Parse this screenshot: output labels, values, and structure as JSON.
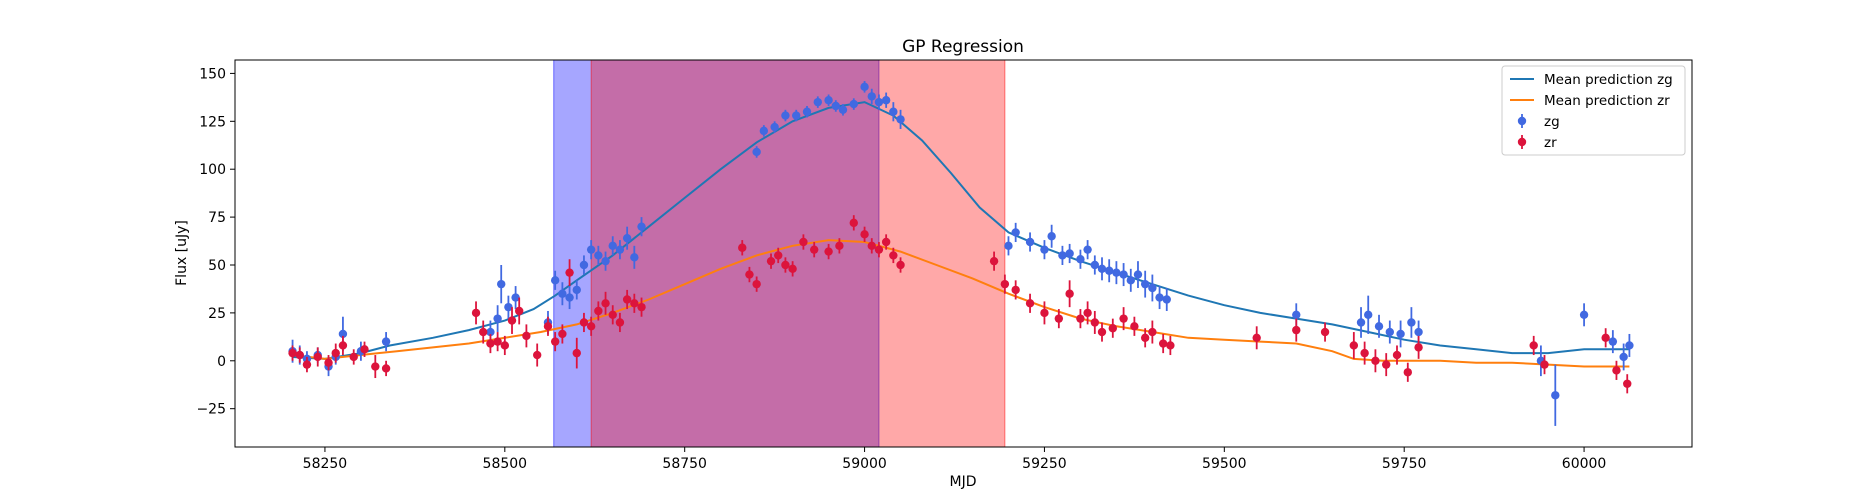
{
  "chart_data": {
    "type": "scatter",
    "title": "GP Regression",
    "xlabel": "MJD",
    "ylabel": "Flux [uJy]",
    "xlim": [
      58125,
      60150
    ],
    "ylim": [
      -45,
      157
    ],
    "xticks": [
      58250,
      58500,
      58750,
      59000,
      59250,
      59500,
      59750,
      60000
    ],
    "yticks": [
      -25,
      0,
      25,
      50,
      75,
      100,
      125,
      150
    ],
    "grid": false,
    "legend_position": "top-right",
    "shaded_regions": [
      {
        "x_start": 58568,
        "x_end": 59020,
        "color": "#0000ff",
        "opacity": 0.35
      },
      {
        "x_start": 58620,
        "x_end": 59195,
        "color": "#ff0000",
        "opacity": 0.34
      }
    ],
    "series": [
      {
        "name": "Mean prediction zg",
        "kind": "line",
        "color": "#1f77b4",
        "x": [
          58205,
          58250,
          58300,
          58340,
          58400,
          58450,
          58500,
          58540,
          58570,
          58600,
          58650,
          58700,
          58750,
          58800,
          58850,
          58900,
          58950,
          59000,
          59040,
          59080,
          59120,
          59160,
          59200,
          59250,
          59300,
          59350,
          59400,
          59450,
          59500,
          59550,
          59600,
          59650,
          59700,
          59750,
          59800,
          59850,
          59900,
          59950,
          60000,
          60063
        ],
        "y": [
          2,
          1,
          4,
          8,
          12,
          16,
          21,
          27,
          34,
          42,
          55,
          70,
          85,
          100,
          114,
          125,
          132,
          135,
          128,
          115,
          98,
          80,
          67,
          59,
          52,
          46,
          40,
          34,
          29,
          25,
          22,
          19,
          15,
          11,
          8,
          6,
          4,
          4,
          6,
          6
        ]
      },
      {
        "name": "Mean prediction zr",
        "kind": "line",
        "color": "#ff7f0e",
        "x": [
          58205,
          58250,
          58300,
          58350,
          58400,
          58450,
          58500,
          58550,
          58600,
          58650,
          58700,
          58750,
          58800,
          58850,
          58900,
          58950,
          59000,
          59050,
          59100,
          59150,
          59200,
          59250,
          59300,
          59350,
          59400,
          59450,
          59500,
          59550,
          59600,
          59650,
          59680,
          59720,
          59750,
          59800,
          59850,
          59900,
          59950,
          60000,
          60063
        ],
        "y": [
          3,
          1,
          3,
          5,
          7,
          9,
          12,
          15,
          19,
          25,
          32,
          40,
          48,
          55,
          60,
          63,
          62,
          57,
          50,
          43,
          35,
          28,
          22,
          18,
          15,
          12,
          11,
          10,
          9,
          5,
          1,
          0,
          0,
          0,
          -1,
          -1,
          -2,
          -3,
          -3
        ]
      },
      {
        "name": "zg",
        "kind": "errorbar",
        "color": "#4169e1",
        "x": [
          58205,
          58215,
          58225,
          58240,
          58255,
          58265,
          58275,
          58300,
          58335,
          58480,
          58490,
          58495,
          58505,
          58515,
          58560,
          58570,
          58580,
          58590,
          58600,
          58610,
          58620,
          58630,
          58640,
          58650,
          58660,
          58670,
          58680,
          58690,
          58850,
          58860,
          58875,
          58890,
          58905,
          58920,
          58935,
          58950,
          58960,
          58970,
          58985,
          59000,
          59010,
          59020,
          59030,
          59040,
          59050,
          59200,
          59210,
          59230,
          59250,
          59260,
          59275,
          59285,
          59300,
          59310,
          59320,
          59330,
          59340,
          59350,
          59360,
          59370,
          59380,
          59390,
          59400,
          59410,
          59420,
          59600,
          59690,
          59700,
          59715,
          59730,
          59745,
          59760,
          59770,
          59940,
          59960,
          60000,
          60040,
          60055,
          60063
        ],
        "y": [
          5,
          3,
          1,
          3,
          -3,
          2,
          14,
          5,
          10,
          15,
          22,
          40,
          28,
          33,
          20,
          42,
          35,
          33,
          37,
          50,
          58,
          55,
          52,
          60,
          58,
          64,
          54,
          70,
          109,
          120,
          122,
          128,
          128,
          130,
          135,
          136,
          133,
          131,
          134,
          143,
          138,
          135,
          136,
          130,
          126,
          60,
          67,
          62,
          58,
          65,
          55,
          56,
          53,
          58,
          50,
          48,
          47,
          46,
          45,
          42,
          45,
          40,
          38,
          33,
          32,
          24,
          20,
          24,
          18,
          15,
          14,
          20,
          15,
          0,
          -18,
          24,
          10,
          2,
          8
        ],
        "err": [
          6,
          5,
          4,
          4,
          5,
          4,
          9,
          5,
          5,
          6,
          7,
          10,
          6,
          6,
          6,
          5,
          6,
          6,
          5,
          5,
          5,
          5,
          5,
          5,
          5,
          6,
          6,
          5,
          3,
          3,
          3,
          3,
          3,
          3,
          3,
          3,
          3,
          3,
          3,
          3,
          4,
          4,
          4,
          5,
          5,
          5,
          5,
          5,
          5,
          6,
          5,
          5,
          5,
          5,
          5,
          6,
          6,
          6,
          6,
          6,
          7,
          7,
          7,
          6,
          6,
          6,
          8,
          10,
          6,
          6,
          7,
          8,
          6,
          8,
          16,
          6,
          6,
          7,
          6
        ]
      },
      {
        "name": "zr",
        "kind": "errorbar",
        "color": "#dc143c",
        "x": [
          58205,
          58215,
          58225,
          58240,
          58255,
          58265,
          58275,
          58290,
          58305,
          58320,
          58335,
          58460,
          58470,
          58480,
          58490,
          58500,
          58510,
          58520,
          58530,
          58545,
          58560,
          58570,
          58580,
          58590,
          58600,
          58610,
          58620,
          58630,
          58640,
          58650,
          58660,
          58670,
          58680,
          58690,
          58830,
          58840,
          58850,
          58870,
          58880,
          58890,
          58900,
          58915,
          58930,
          58950,
          58965,
          58985,
          59000,
          59010,
          59020,
          59030,
          59040,
          59050,
          59180,
          59195,
          59210,
          59230,
          59250,
          59270,
          59285,
          59300,
          59310,
          59320,
          59330,
          59345,
          59360,
          59375,
          59390,
          59400,
          59415,
          59425,
          59545,
          59600,
          59640,
          59680,
          59695,
          59710,
          59725,
          59740,
          59755,
          59770,
          59930,
          59945,
          60030,
          60045,
          60060
        ],
        "y": [
          4,
          3,
          -2,
          2,
          -1,
          4,
          8,
          2,
          6,
          -3,
          -4,
          25,
          15,
          9,
          10,
          8,
          21,
          26,
          13,
          3,
          18,
          10,
          14,
          46,
          4,
          20,
          18,
          26,
          30,
          24,
          20,
          32,
          30,
          28,
          59,
          45,
          40,
          52,
          55,
          50,
          48,
          62,
          58,
          57,
          60,
          72,
          66,
          60,
          58,
          62,
          55,
          50,
          52,
          40,
          37,
          30,
          25,
          22,
          35,
          22,
          25,
          20,
          15,
          17,
          22,
          18,
          12,
          15,
          9,
          8,
          12,
          16,
          15,
          8,
          4,
          0,
          -2,
          3,
          -6,
          7,
          8,
          -2,
          12,
          -5,
          -12
        ],
        "err": [
          4,
          4,
          4,
          5,
          4,
          5,
          5,
          4,
          4,
          6,
          4,
          6,
          6,
          5,
          5,
          5,
          7,
          7,
          6,
          6,
          5,
          5,
          5,
          7,
          8,
          5,
          5,
          5,
          6,
          5,
          5,
          5,
          5,
          5,
          4,
          4,
          4,
          4,
          4,
          4,
          4,
          4,
          4,
          4,
          4,
          4,
          4,
          4,
          4,
          4,
          4,
          4,
          5,
          5,
          5,
          5,
          6,
          5,
          7,
          5,
          6,
          6,
          5,
          5,
          6,
          5,
          5,
          6,
          5,
          5,
          6,
          6,
          5,
          7,
          6,
          6,
          6,
          5,
          5,
          6,
          5,
          5,
          5,
          5,
          5
        ]
      }
    ]
  }
}
